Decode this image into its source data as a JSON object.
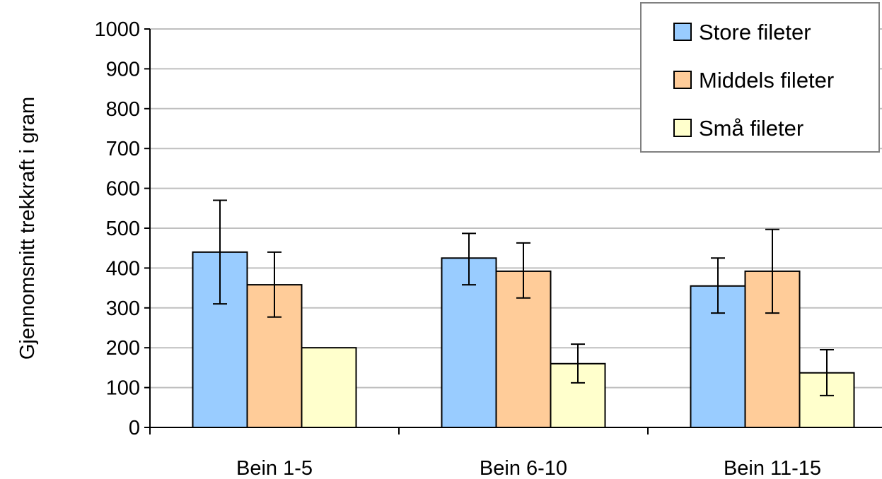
{
  "chart_data": {
    "type": "bar",
    "title": "",
    "xlabel": "",
    "ylabel": "Gjennomsnitt trekkraft i gram",
    "ylim": [
      0,
      1000
    ],
    "yticks": [
      0,
      100,
      200,
      300,
      400,
      500,
      600,
      700,
      800,
      900,
      1000
    ],
    "grid": true,
    "legend_position": "top-right",
    "categories": [
      "Bein 1-5",
      "Bein 6-10",
      "Bein 11-15"
    ],
    "series": [
      {
        "name": "Store fileter",
        "color": "#99CCFF",
        "values": [
          440,
          425,
          355
        ],
        "error": [
          [
            310,
            570
          ],
          [
            358,
            487
          ],
          [
            287,
            425
          ]
        ]
      },
      {
        "name": "Middels fileter",
        "color": "#FFCC99",
        "values": [
          358,
          392,
          392
        ],
        "error": [
          [
            277,
            440
          ],
          [
            325,
            463
          ],
          [
            287,
            497
          ]
        ]
      },
      {
        "name": "Små fileter",
        "color": "#FFFFCC",
        "values": [
          200,
          160,
          137
        ],
        "error": [
          null,
          [
            112,
            209
          ],
          [
            80,
            195
          ]
        ]
      }
    ]
  }
}
